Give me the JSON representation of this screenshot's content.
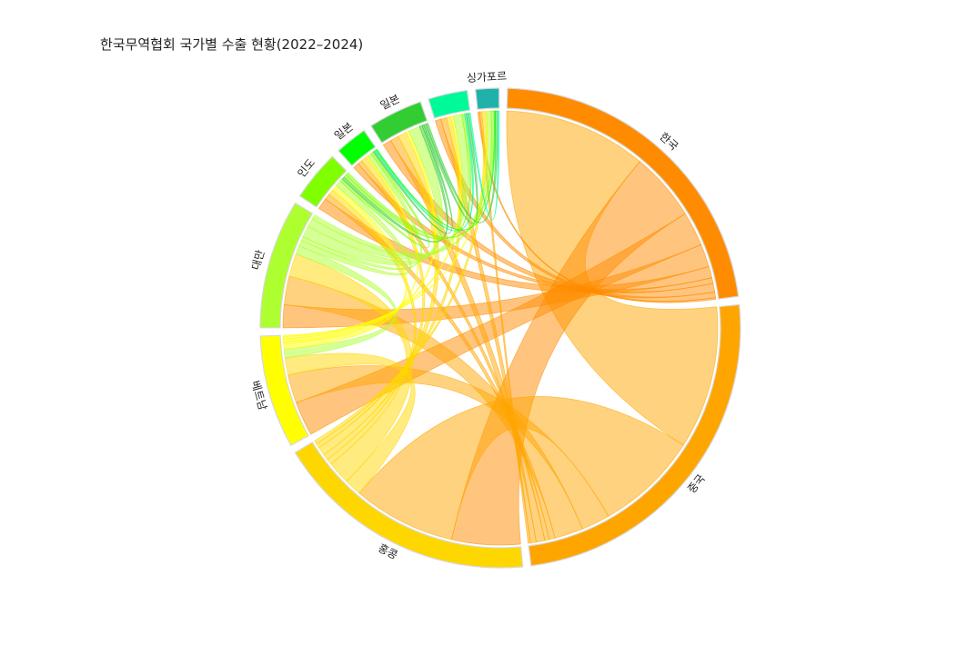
{
  "title": "한국무역협회 국가별 수출 현황(2022–2024)",
  "chart_data": {
    "type": "chord",
    "title": "한국무역협회 국가별 수출 현황(2022–2024)",
    "groups": [
      {
        "name": "한국",
        "color": "#FF8C00"
      },
      {
        "name": "중국",
        "color": "#FFA500"
      },
      {
        "name": "홍콩",
        "color": "#FFD700"
      },
      {
        "name": "베트남",
        "color": "#FFFF00"
      },
      {
        "name": "대만",
        "color": "#ADFF2F"
      },
      {
        "name": "인도",
        "color": "#7FFF00"
      },
      {
        "name": "일본",
        "color": "#00FF00"
      },
      {
        "name": "일본",
        "color": "#32CD32"
      },
      {
        "name": "",
        "color": "#00FA9A"
      },
      {
        "name": "싱가포르",
        "color": "#20B2AA"
      }
    ],
    "matrix": [
      [
        0,
        25,
        12,
        6,
        4,
        2,
        1,
        1.5,
        1,
        0.3
      ],
      [
        25,
        0,
        18,
        5,
        5,
        1,
        0.8,
        1.5,
        1,
        0.4
      ],
      [
        12,
        18,
        0,
        3,
        4,
        1,
        1,
        1.5,
        0.8,
        0.6
      ],
      [
        6,
        5,
        3,
        0,
        1.5,
        1,
        0.3,
        0.5,
        0.4,
        0.2
      ],
      [
        4,
        5,
        4,
        1.5,
        0,
        1,
        0.7,
        2,
        1.5,
        0.8
      ],
      [
        2,
        1,
        1,
        1,
        1,
        0,
        0.5,
        0.5,
        0.5,
        0.5
      ],
      [
        1,
        0.8,
        1,
        0.3,
        0.7,
        0.5,
        0,
        0.3,
        0.3,
        0.2
      ],
      [
        1.5,
        1.5,
        1.5,
        0.5,
        2,
        0.5,
        0.3,
        0,
        0.4,
        0.4
      ],
      [
        1,
        1,
        0.8,
        0.4,
        1.5,
        0.5,
        0.3,
        0.4,
        0,
        0.3
      ],
      [
        0.3,
        0.4,
        0.6,
        0.2,
        0.8,
        0.5,
        0.2,
        0.4,
        0.3,
        0
      ]
    ]
  }
}
